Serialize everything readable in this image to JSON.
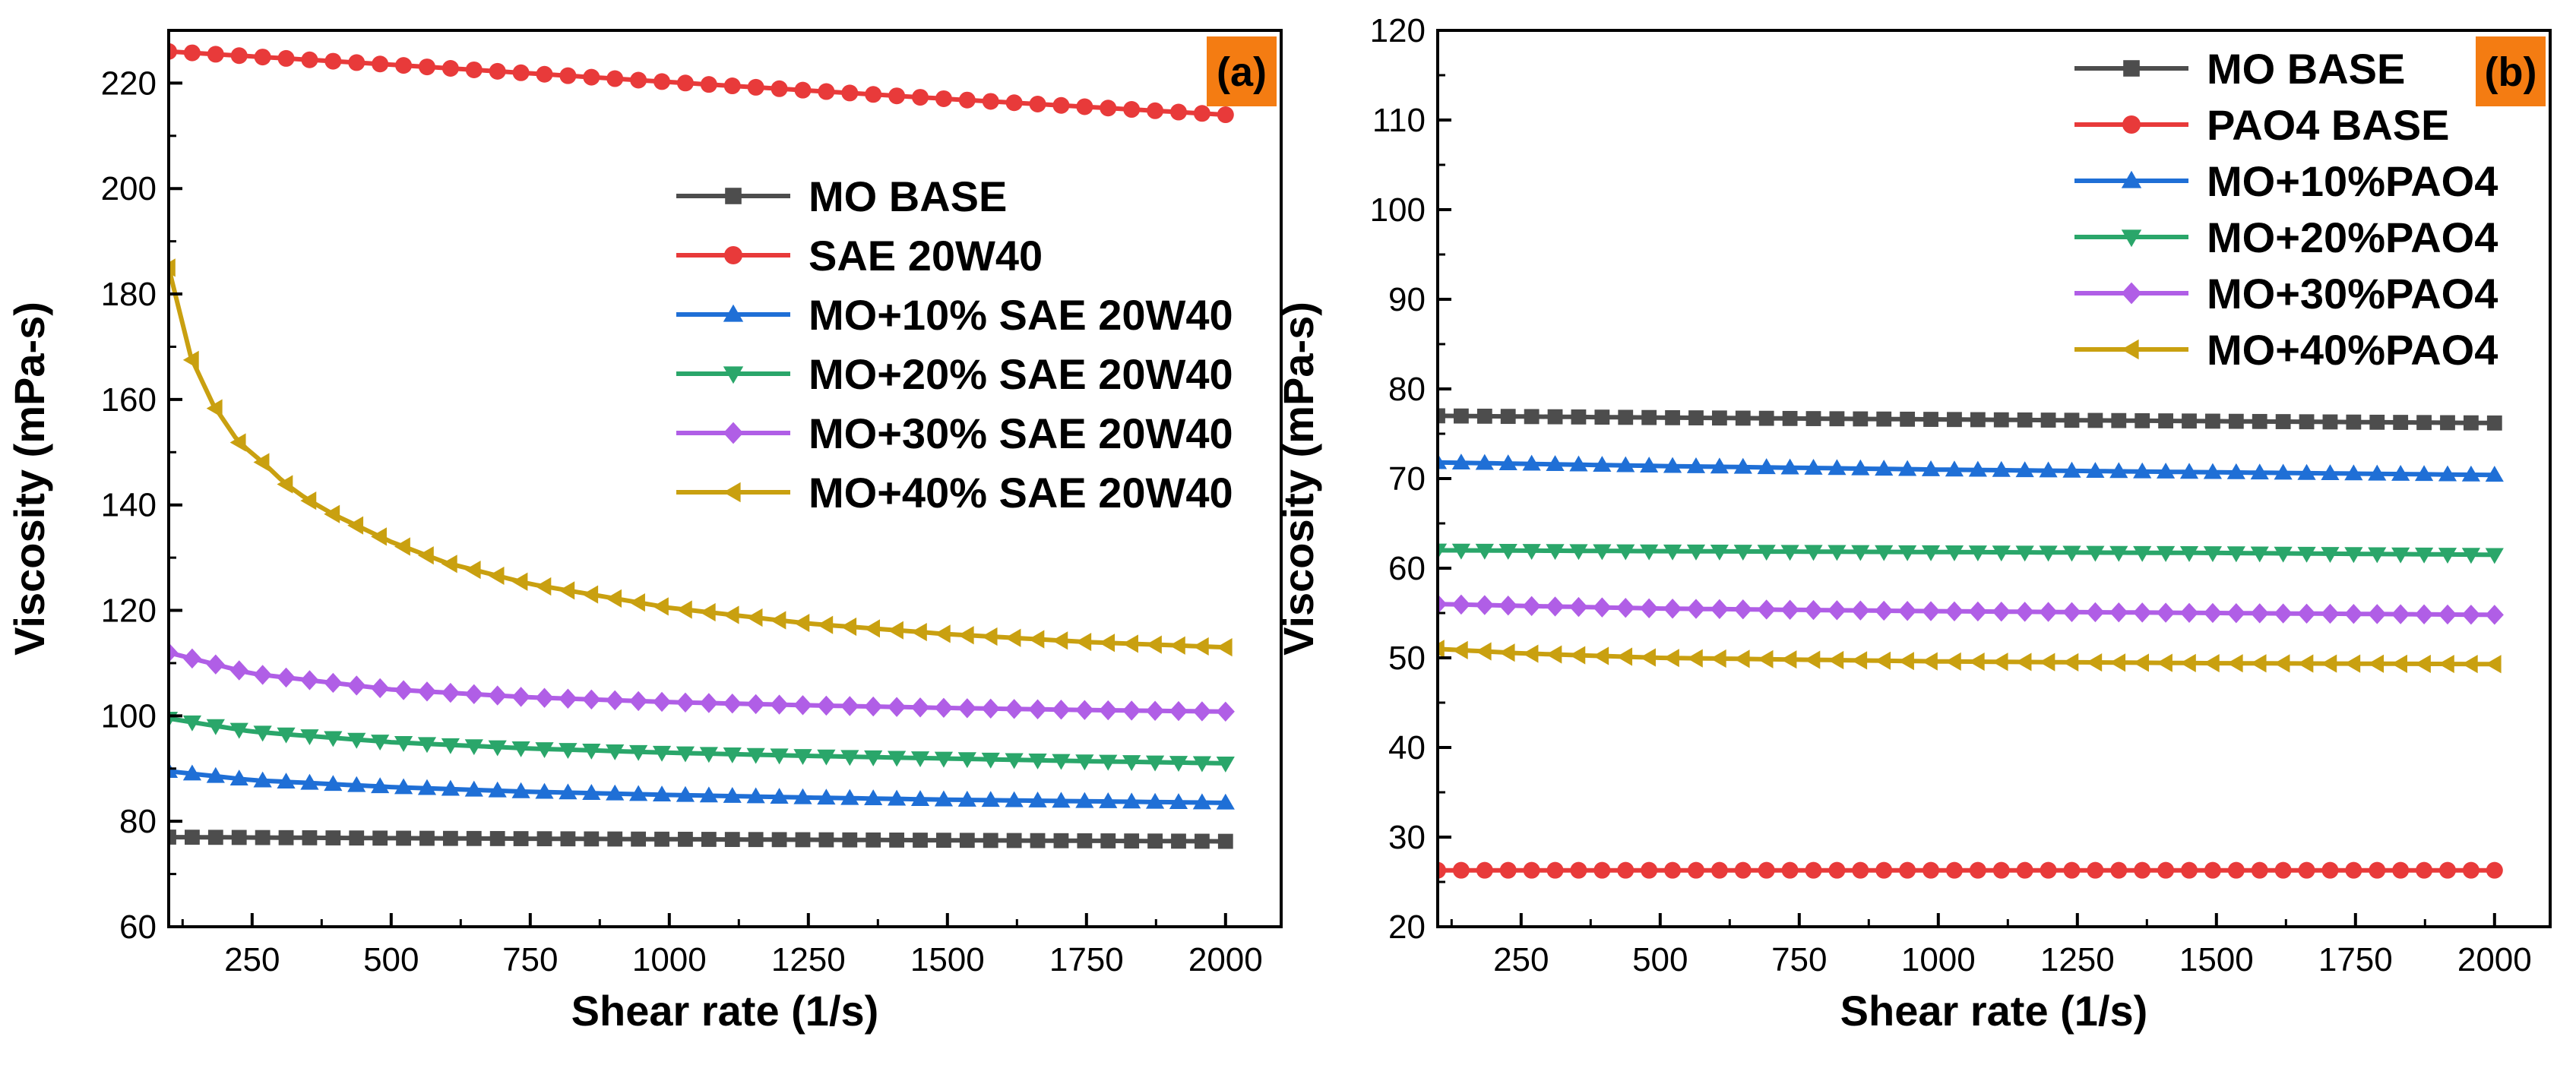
{
  "chart_data": [
    {
      "panel": "(a)",
      "type": "line",
      "xlabel": "Shear rate (1/s)",
      "ylabel": "Viscosity (mPa-s)",
      "xlim": [
        100,
        2100
      ],
      "ylim": [
        60,
        230
      ],
      "xticks": [
        250,
        500,
        750,
        1000,
        1250,
        1500,
        1750,
        2000
      ],
      "yticks": [
        60,
        80,
        100,
        120,
        140,
        160,
        180,
        200,
        220
      ],
      "legend_position": "center-right",
      "series": [
        {
          "name": "MO BASE",
          "color": "#4d4d4d",
          "marker": "square",
          "x": [
            100,
            500,
            1000,
            1500,
            2000
          ],
          "y": [
            77,
            76.8,
            76.6,
            76.4,
            76.2
          ]
        },
        {
          "name": "SAE 20W40",
          "color": "#e83a3a",
          "marker": "circle",
          "x": [
            100,
            500,
            1000,
            1500,
            2000
          ],
          "y": [
            226,
            223.5,
            220.2,
            217,
            214
          ]
        },
        {
          "name": "MO+10% SAE 20W40",
          "color": "#1f6fd6",
          "marker": "triangle-up",
          "x": [
            100,
            250,
            500,
            750,
            1000,
            1250,
            1500,
            1750,
            2000
          ],
          "y": [
            89.5,
            87.8,
            86.5,
            85.6,
            85,
            84.5,
            84.1,
            83.8,
            83.5
          ]
        },
        {
          "name": "MO+20% SAE 20W40",
          "color": "#2aa66a",
          "marker": "triangle-down",
          "x": [
            100,
            250,
            500,
            750,
            1000,
            1250,
            1500,
            1750,
            2000
          ],
          "y": [
            99.5,
            97,
            95,
            93.8,
            93,
            92.4,
            91.9,
            91.4,
            91
          ]
        },
        {
          "name": "MO+30% SAE 20W40",
          "color": "#b05ee6",
          "marker": "diamond",
          "x": [
            100,
            250,
            500,
            750,
            1000,
            1250,
            1500,
            1750,
            2000
          ],
          "y": [
            112,
            108,
            105,
            103.5,
            102.6,
            102,
            101.5,
            101.1,
            100.8
          ]
        },
        {
          "name": "MO+40% SAE 20W40",
          "color": "#c9a010",
          "marker": "triangle-left",
          "x": [
            100,
            140,
            180,
            225,
            270,
            310,
            350,
            400,
            500,
            600,
            750,
            1000,
            1250,
            1500,
            1750,
            2000
          ],
          "y": [
            185,
            168,
            159,
            152,
            148,
            144,
            141,
            138,
            133,
            129,
            125,
            120.5,
            117.5,
            115.5,
            114,
            113
          ]
        }
      ]
    },
    {
      "panel": "(b)",
      "type": "line",
      "xlabel": "Shear rate (1/s)",
      "ylabel": "Viscosity (mPa-s)",
      "xlim": [
        100,
        2100
      ],
      "ylim": [
        20,
        120
      ],
      "xticks": [
        250,
        500,
        750,
        1000,
        1250,
        1500,
        1750,
        2000
      ],
      "yticks": [
        20,
        30,
        40,
        50,
        60,
        70,
        80,
        90,
        100,
        110,
        120
      ],
      "legend_position": "top-right",
      "series": [
        {
          "name": "MO BASE",
          "color": "#4d4d4d",
          "marker": "square",
          "x": [
            100,
            500,
            1000,
            1500,
            2000
          ],
          "y": [
            77,
            76.8,
            76.6,
            76.4,
            76.2
          ]
        },
        {
          "name": "PAO4 BASE",
          "color": "#e83a3a",
          "marker": "circle",
          "x": [
            100,
            500,
            1000,
            1500,
            2000
          ],
          "y": [
            26.3,
            26.3,
            26.3,
            26.3,
            26.3
          ]
        },
        {
          "name": "MO+10%PAO4",
          "color": "#1f6fd6",
          "marker": "triangle-up",
          "x": [
            100,
            500,
            1000,
            1500,
            2000
          ],
          "y": [
            71.8,
            71.4,
            71,
            70.7,
            70.4
          ]
        },
        {
          "name": "MO+20%PAO4",
          "color": "#2aa66a",
          "marker": "triangle-down",
          "x": [
            100,
            500,
            1000,
            1500,
            2000
          ],
          "y": [
            62,
            61.9,
            61.8,
            61.7,
            61.5
          ]
        },
        {
          "name": "MO+30%PAO4",
          "color": "#b05ee6",
          "marker": "diamond",
          "x": [
            100,
            250,
            500,
            1000,
            1500,
            2000
          ],
          "y": [
            56,
            55.8,
            55.5,
            55.2,
            55,
            54.8
          ]
        },
        {
          "name": "MO+40%PAO4",
          "color": "#c9a010",
          "marker": "triangle-left",
          "x": [
            100,
            250,
            500,
            1000,
            1500,
            2000
          ],
          "y": [
            51,
            50.5,
            50,
            49.6,
            49.4,
            49.3
          ]
        }
      ]
    }
  ]
}
